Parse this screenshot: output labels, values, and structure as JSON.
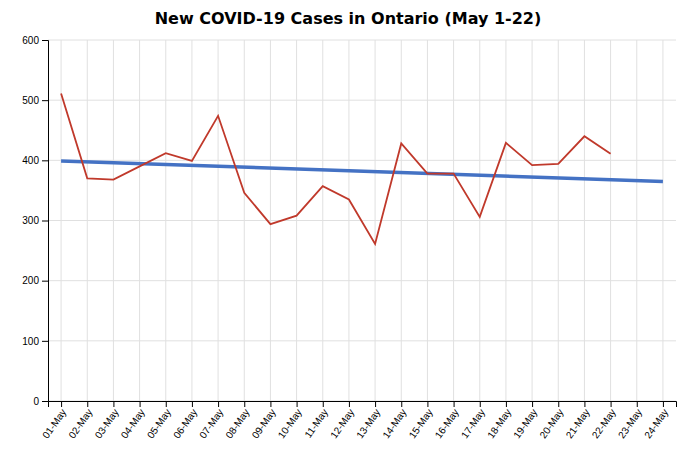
{
  "chart_data": {
    "type": "line",
    "title": "New COVID-19 Cases in Ontario (May 1-22)",
    "categories": [
      "01-May",
      "02-May",
      "03-May",
      "04-May",
      "05-May",
      "06-May",
      "07-May",
      "08-May",
      "09-May",
      "10-May",
      "11-May",
      "12-May",
      "13-May",
      "14-May",
      "15-May",
      "16-May",
      "17-May",
      "18-May",
      "19-May",
      "20-May",
      "21-May",
      "22-May",
      "23-May",
      "24-May"
    ],
    "series": [
      {
        "color": "#c0392b",
        "values": [
          511,
          370,
          368,
          390,
          412,
          399,
          474,
          346,
          294,
          308,
          357,
          335,
          261,
          428,
          378,
          378,
          306,
          429,
          392,
          394,
          440,
          411,
          null,
          null
        ]
      }
    ],
    "trend": {
      "start": 399,
      "end": 365,
      "color": "#4472c4"
    },
    "ylim": [
      0,
      600
    ],
    "yticks": [
      0,
      100,
      200,
      300,
      400,
      500,
      600
    ],
    "grid": true
  }
}
